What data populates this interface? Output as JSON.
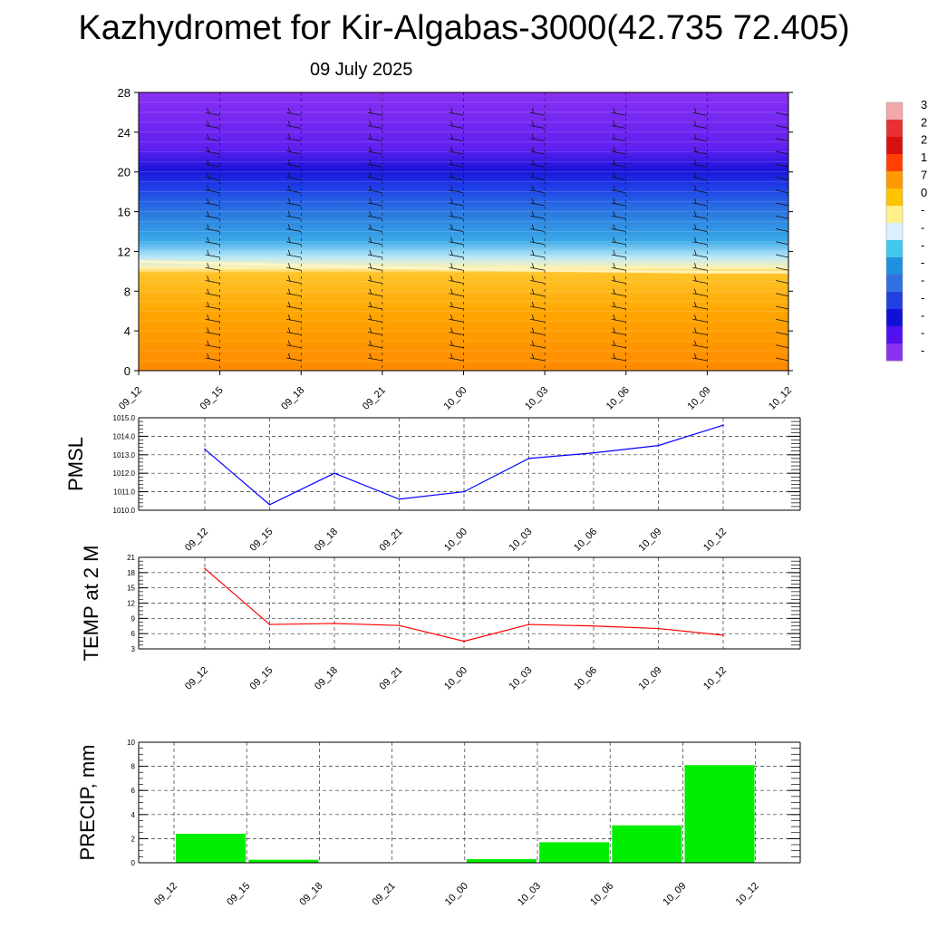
{
  "title": "Kazhydromet for Kir-Algabas-3000(42.735 72.405)",
  "subtitle": "09 July 2025",
  "chart_data": [
    {
      "type": "heatmap",
      "x": [
        "09_12",
        "09_15",
        "09_18",
        "09_21",
        "10_00",
        "10_03",
        "10_06",
        "10_09",
        "10_12"
      ],
      "ylim": [
        0,
        28
      ],
      "yticks": [
        0,
        4,
        8,
        12,
        16,
        20,
        24,
        28
      ],
      "colorbar_labels": [
        "3",
        "2",
        "2",
        "1",
        "7",
        "0",
        "-",
        "-",
        "-",
        "-",
        "-",
        "-",
        "-",
        "-",
        "-"
      ],
      "colorbar_colors": [
        "#f2a8a8",
        "#e83030",
        "#d81010",
        "#ff4000",
        "#ff9a00",
        "#ffc400",
        "#fff08a",
        "#d8f0ff",
        "#40c8f0",
        "#2090e0",
        "#3070e0",
        "#2040e0",
        "#1010d8",
        "#5010f0",
        "#8a30f0"
      ],
      "freezing_level_km": [
        11.0,
        10.8,
        10.6,
        10.4,
        10.2,
        10.1,
        10.0,
        9.9,
        9.9
      ]
    },
    {
      "type": "line",
      "ylabel": "PMSL",
      "ylim": [
        1010,
        1015
      ],
      "yticks": [
        "1010.0",
        "1011.0",
        "1012.0",
        "1013.0",
        "1014.0",
        "1015.0"
      ],
      "categories": [
        "09_12",
        "09_15",
        "09_18",
        "09_21",
        "10_00",
        "10_03",
        "10_06",
        "10_09",
        "10_12"
      ],
      "values": [
        1013.3,
        1010.3,
        1012.0,
        1010.6,
        1011.0,
        1012.8,
        1013.1,
        1013.5,
        1014.6
      ],
      "color": "#0000ff",
      "grid": true
    },
    {
      "type": "line",
      "ylabel": "TEMP at 2 M",
      "ylim": [
        3,
        21
      ],
      "yticks": [
        "3",
        "6",
        "9",
        "12",
        "15",
        "18",
        "21"
      ],
      "categories": [
        "09_12",
        "09_15",
        "09_18",
        "09_21",
        "10_00",
        "10_03",
        "10_06",
        "10_09",
        "10_12"
      ],
      "values": [
        18.8,
        7.8,
        8.0,
        7.6,
        4.5,
        7.8,
        7.5,
        7.0,
        5.7
      ],
      "color": "#ff0000",
      "grid": true
    },
    {
      "type": "bar",
      "ylabel": "PRECIP, mm",
      "ylim": [
        0,
        10
      ],
      "yticks": [
        "0",
        "2",
        "4",
        "6",
        "8",
        "10"
      ],
      "categories": [
        "09_12",
        "09_15",
        "09_18",
        "09_21",
        "10_00",
        "10_03",
        "10_06",
        "10_09",
        "10_12"
      ],
      "values": [
        0,
        2.4,
        0.25,
        0,
        0,
        0.3,
        1.7,
        3.1,
        8.1
      ],
      "color": "#00ee00",
      "grid": true
    }
  ]
}
